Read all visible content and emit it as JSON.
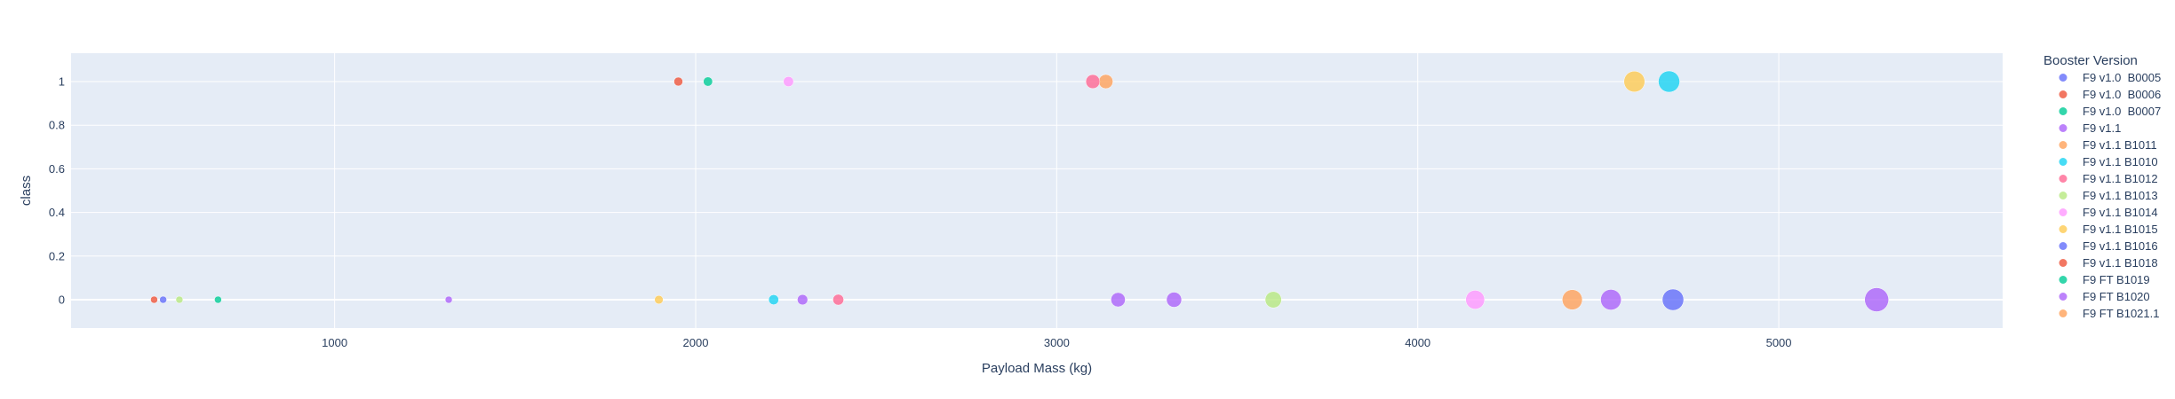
{
  "chart_data": {
    "type": "scatter",
    "xlabel": "Payload Mass (kg)",
    "ylabel": "class",
    "xlim": [
      270,
      5620
    ],
    "ylim": [
      -0.13,
      1.13
    ],
    "x_ticks": [
      1000,
      2000,
      3000,
      4000,
      5000
    ],
    "y_ticks": [
      0,
      0.2,
      0.4,
      0.6,
      0.8,
      1
    ],
    "y_tick_labels": [
      "0",
      "0.2",
      "0.4",
      "0.6",
      "0.8",
      "1"
    ],
    "grid": true,
    "plot_bgcolor": "#e5ecf6",
    "legend_title": "Booster Version",
    "legend_placement": "right",
    "size_encoding": "Payload Mass (kg)",
    "series": [
      {
        "name": "F9 v1.0  B0005",
        "color": "#636efa",
        "points": [
          {
            "x": 525,
            "y": 0
          }
        ]
      },
      {
        "name": "F9 v1.0  B0006",
        "color": "#EF553B",
        "points": [
          {
            "x": 500,
            "y": 0
          }
        ]
      },
      {
        "name": "F9 v1.0  B0007",
        "color": "#00cc96",
        "points": [
          {
            "x": 677,
            "y": 0
          }
        ]
      },
      {
        "name": "F9 v1.1",
        "color": "#ab63fa",
        "points": [
          {
            "x": 1316,
            "y": 0
          }
        ]
      },
      {
        "name": "F9 v1.1 B1011",
        "color": "#FFA15A",
        "points": [
          {
            "x": 4428,
            "y": 0
          }
        ]
      },
      {
        "name": "F9 v1.1 B1010",
        "color": "#19d3f3",
        "points": [
          {
            "x": 2216,
            "y": 0
          }
        ]
      },
      {
        "name": "F9 v1.1 B1012",
        "color": "#FF6692",
        "points": [
          {
            "x": 2395,
            "y": 0
          }
        ]
      },
      {
        "name": "F9 v1.1 B1013",
        "color": "#B6E880",
        "points": [
          {
            "x": 570,
            "y": 0
          }
        ]
      },
      {
        "name": "F9 v1.1 B1014",
        "color": "#FF97FF",
        "points": [
          {
            "x": 4159,
            "y": 0
          }
        ]
      },
      {
        "name": "F9 v1.1 B1015",
        "color": "#FECB52",
        "points": [
          {
            "x": 1898,
            "y": 0
          }
        ]
      },
      {
        "name": "F9 v1.1 B1016",
        "color": "#636efa",
        "points": [
          {
            "x": 4707,
            "y": 0
          }
        ]
      },
      {
        "name": "F9 v1.1 B1018",
        "color": "#EF553B",
        "points": [
          {
            "x": 1952,
            "y": 1
          }
        ]
      },
      {
        "name": "F9 FT B1019",
        "color": "#00cc96",
        "points": [
          {
            "x": 2034,
            "y": 1
          }
        ]
      },
      {
        "name": "F9 FT B1020",
        "color": "#ab63fa",
        "points": [
          {
            "x": 5271,
            "y": 0
          }
        ]
      },
      {
        "name": "F9 FT B1021.1",
        "color": "#FFA15A",
        "points": [
          {
            "x": 3136,
            "y": 1
          }
        ]
      },
      {
        "name": "",
        "color": "#ab63fa",
        "points": [
          {
            "x": 2296,
            "y": 0
          },
          {
            "x": 3170,
            "y": 0
          },
          {
            "x": 3325,
            "y": 0
          },
          {
            "x": 4535,
            "y": 0
          }
        ]
      },
      {
        "name": "",
        "color": "#B6E880",
        "points": [
          {
            "x": 3600,
            "y": 0
          }
        ]
      },
      {
        "name": "",
        "color": "#FF97FF",
        "points": [
          {
            "x": 2257,
            "y": 1
          }
        ]
      },
      {
        "name": "",
        "color": "#FF6692",
        "points": [
          {
            "x": 3100,
            "y": 1
          }
        ]
      },
      {
        "name": "",
        "color": "#FECB52",
        "points": [
          {
            "x": 4600,
            "y": 1
          }
        ]
      },
      {
        "name": "",
        "color": "#19d3f3",
        "points": [
          {
            "x": 4696,
            "y": 1
          }
        ]
      }
    ]
  }
}
